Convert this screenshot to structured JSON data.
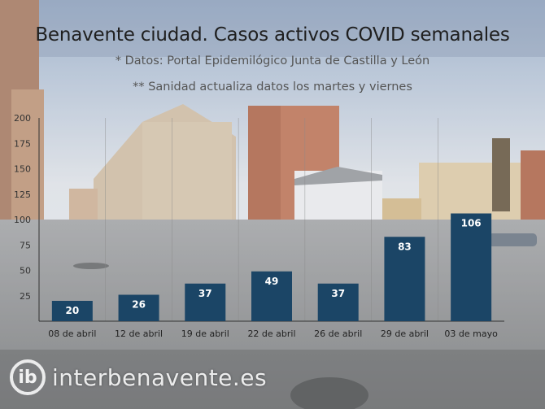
{
  "header": {
    "title": "Benavente ciudad. Casos activos COVID semanales",
    "note1": "* Datos: Portal Epidemilógico Junta de Castilla y León",
    "note2": "** Sanidad actualiza datos los martes y viernes"
  },
  "watermark": {
    "text": "interbenavente.es",
    "mark": "ib"
  },
  "colors": {
    "bar": "#1b4566",
    "axis": "#333333",
    "grid": "#888888"
  },
  "chart_data": {
    "type": "bar",
    "title": "Benavente ciudad. Casos activos COVID semanales",
    "xlabel": "",
    "ylabel": "",
    "categories": [
      "08 de abril",
      "12 de abril",
      "19 de abril",
      "22 de abril",
      "26 de abril",
      "29 de abril",
      "03 de mayo"
    ],
    "values": [
      20,
      26,
      37,
      49,
      37,
      83,
      106
    ],
    "yticks": [
      25,
      50,
      75,
      100,
      125,
      150,
      175,
      200
    ],
    "ylim": [
      0,
      200
    ],
    "data_labels": true,
    "grid": "vertical"
  }
}
